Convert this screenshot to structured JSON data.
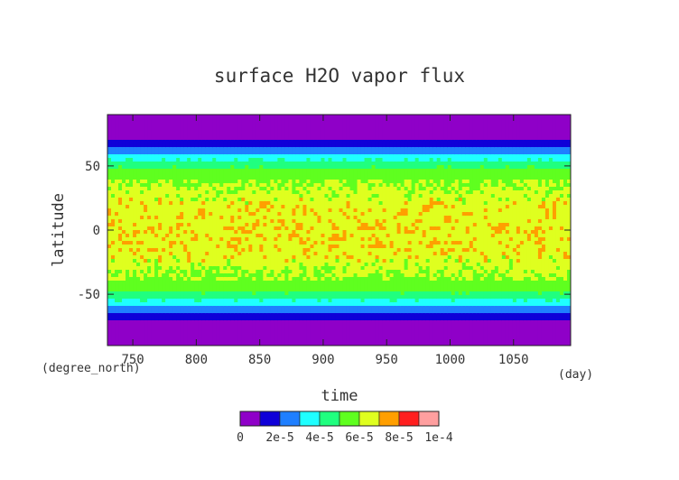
{
  "chart_data": {
    "type": "heatmap",
    "title": "surface H2O vapor flux",
    "xlabel": "time",
    "ylabel": "latitude",
    "x_unit": "(day)",
    "y_unit": "(degree_north)",
    "xlim": [
      730,
      1095
    ],
    "ylim": [
      -90,
      90
    ],
    "x_ticks": [
      750,
      800,
      850,
      900,
      950,
      1000,
      1050
    ],
    "y_ticks": [
      -50,
      0,
      50
    ],
    "grid": false,
    "colorbar": {
      "levels": [
        0,
        1e-05,
        2e-05,
        3e-05,
        4e-05,
        5e-05,
        6e-05,
        7e-05,
        8e-05,
        9e-05,
        0.0001
      ],
      "tick_labels": [
        "0",
        "2e-5",
        "4e-5",
        "6e-5",
        "8e-5",
        "1e-4"
      ],
      "colors": [
        "#8f00c8",
        "#0f00d8",
        "#1f7fff",
        "#1fffff",
        "#20ff7f",
        "#5fff1f",
        "#dfff1f",
        "#ff9f00",
        "#ff1f1f",
        "#ff9f9f"
      ]
    },
    "zonal_profile": {
      "latitude": [
        -90,
        -80,
        -72,
        -67,
        -62,
        -57,
        -52,
        -45,
        -35,
        -30,
        -20,
        0,
        20,
        30,
        35,
        45,
        52,
        57,
        62,
        67,
        72,
        80,
        90
      ],
      "value": [
        4e-06,
        5e-06,
        8e-06,
        1.5e-05,
        2.5e-05,
        3.5e-05,
        4.5e-05,
        5.5e-05,
        6e-05,
        6.3e-05,
        6.6e-05,
        6.7e-05,
        6.6e-05,
        6.3e-05,
        6e-05,
        5.5e-05,
        4.5e-05,
        3.5e-05,
        2.5e-05,
        1.5e-05,
        8e-06,
        5e-06,
        4e-06
      ]
    }
  }
}
